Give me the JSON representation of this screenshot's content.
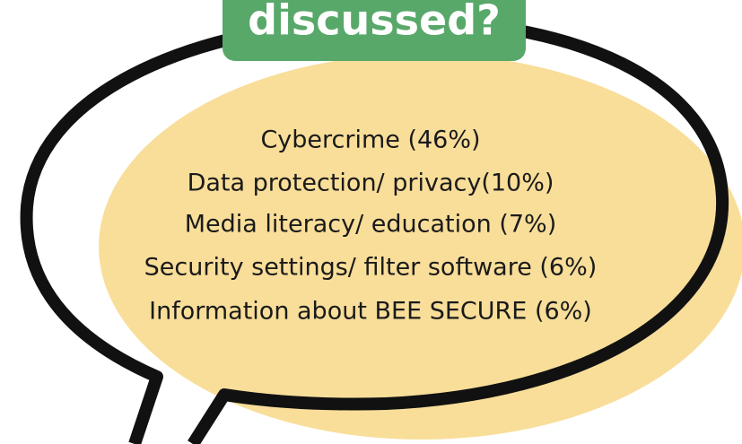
{
  "header": {
    "title": "discussed?"
  },
  "items": [
    "Cybercrime (46%)",
    "Data protection/ privacy(10%)",
    "Media literacy/ education (7%)",
    "Security settings/ filter software (6%)",
    "Information about BEE SECURE (6%)"
  ]
}
